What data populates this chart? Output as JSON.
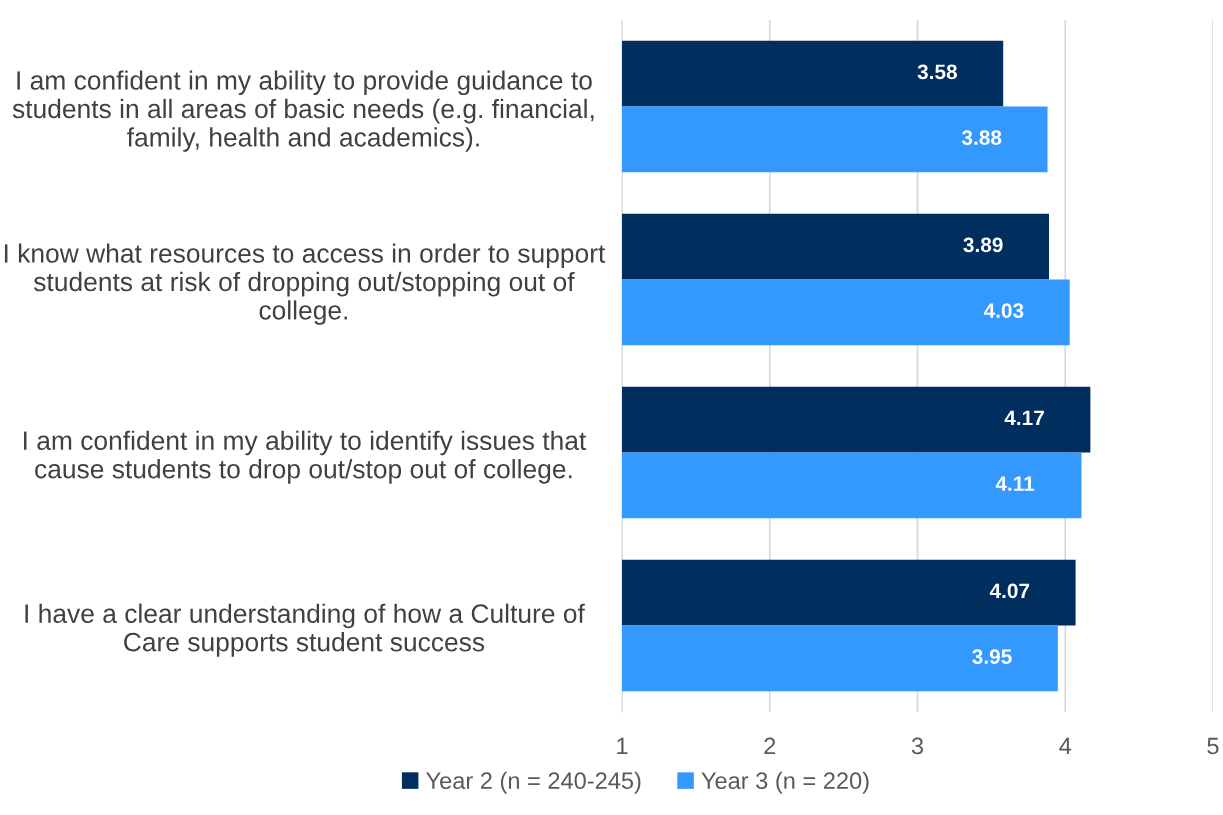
{
  "chart_data": {
    "type": "bar",
    "orientation": "horizontal",
    "categories": [
      "I am confident in my ability to provide guidance to students in all areas of basic needs (e.g. financial, family, health and academics).",
      "I know what resources to access in order to support students at risk of dropping out/stopping out of college.",
      "I am confident in my ability to identify issues that cause students to drop out/stop out of college.",
      "I have a clear understanding of how a Culture of Care supports student success"
    ],
    "series": [
      {
        "name": "Year 2 (n = 240-245)",
        "color": "#002f5f",
        "values": [
          3.58,
          3.89,
          4.17,
          4.07
        ]
      },
      {
        "name": "Year 3 (n = 220)",
        "color": "#3399ff",
        "values": [
          3.88,
          4.03,
          4.11,
          3.95
        ]
      }
    ],
    "xlim": [
      1,
      5
    ],
    "xticks": [
      1,
      2,
      3,
      4,
      5
    ],
    "grid": "x",
    "legend": "bottom",
    "data_labels": true
  }
}
